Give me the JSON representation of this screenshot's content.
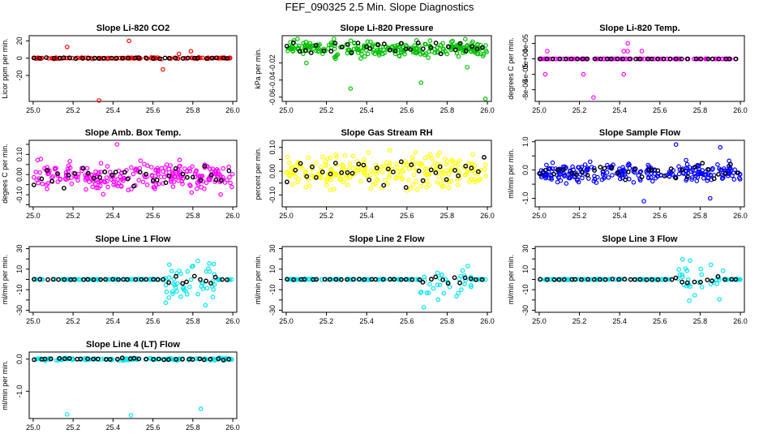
{
  "page_title": "FEF_090325  2.5 Min. Slope Diagnostics",
  "colors": {
    "overlay": "#000000",
    "red": "#ff0000",
    "green": "#00c000",
    "magenta": "#ff00ff",
    "yellow": "#ffff00",
    "blue": "#0000ff",
    "cyan": "#00e5ee"
  },
  "chart_data": [
    {
      "type": "scatter",
      "title": "Slope Li-820 CO2",
      "ylabel": "Licor ppm per min.",
      "xlim": [
        24.98,
        26.02
      ],
      "ylim": [
        -50,
        26
      ],
      "xticks": [
        "25.0",
        "25.2",
        "25.4",
        "25.6",
        "25.8",
        "26.0"
      ],
      "yticks": [
        -20,
        0,
        20
      ],
      "color_name": "red",
      "pattern": "flat",
      "noise": 1.2,
      "outliers": [
        [
          25.17,
          13
        ],
        [
          25.48,
          20
        ],
        [
          25.33,
          -49
        ],
        [
          25.79,
          8
        ],
        [
          25.65,
          -13
        ],
        [
          25.73,
          5
        ]
      ]
    },
    {
      "type": "scatter",
      "title": "Slope Li-820 Pressure",
      "ylabel": "kPa per min.",
      "xlim": [
        24.98,
        26.02
      ],
      "ylim": [
        -0.065,
        0.012
      ],
      "xticks": [
        "25.0",
        "25.2",
        "25.4",
        "25.6",
        "25.8",
        "26.0"
      ],
      "yticks": [
        -0.06,
        -0.04,
        -0.02
      ],
      "color_name": "green",
      "pattern": "band",
      "center": -0.003,
      "noise": 0.009,
      "outliers": [
        [
          25.32,
          -0.05
        ],
        [
          25.67,
          -0.043
        ],
        [
          25.99,
          -0.062
        ],
        [
          25.89,
          0.008
        ],
        [
          25.9,
          -0.025
        ],
        [
          25.1,
          -0.02
        ]
      ]
    },
    {
      "type": "scatter",
      "title": "Slope Li-820 Temp.",
      "ylabel": "degrees C per min.",
      "xlim": [
        24.98,
        26.02
      ],
      "ylim": [
        -0.00011,
        6e-05
      ],
      "xticks": [
        "25.0",
        "25.2",
        "25.4",
        "25.6",
        "25.8",
        "26.0"
      ],
      "yticks": [
        -8e-05,
        -4e-05,
        0,
        4e-05
      ],
      "ytick_labels": [
        "-8e-05",
        "-4e-05",
        "0e+00",
        "4e-05"
      ],
      "color_name": "magenta",
      "pattern": "flat",
      "noise": 0,
      "outliers": [
        [
          25.04,
          2e-05
        ],
        [
          25.44,
          4e-05
        ],
        [
          25.42,
          2e-05
        ],
        [
          25.44,
          2e-05
        ],
        [
          25.03,
          -4e-05
        ],
        [
          25.22,
          -4e-05
        ],
        [
          25.42,
          -4e-05
        ],
        [
          25.27,
          -0.0001
        ],
        [
          25.51,
          2e-05
        ]
      ]
    },
    {
      "type": "scatter",
      "title": "Slope Amb. Box Temp.",
      "ylabel": "degees C per min.",
      "xlim": [
        24.98,
        26.02
      ],
      "ylim": [
        -0.16,
        0.17
      ],
      "xticks": [
        "25.0",
        "25.2",
        "25.4",
        "25.6",
        "25.8",
        "26.0"
      ],
      "yticks": [
        -0.15,
        -0.1,
        -0.05,
        0,
        0.05,
        0.1,
        0.15
      ],
      "ytick_labels": [
        "",
        "-0.10",
        "",
        "0.00",
        "",
        "0.10",
        ""
      ],
      "color_name": "magenta",
      "pattern": "band",
      "center": -0.01,
      "noise": 0.075,
      "outliers": [
        [
          25.42,
          0.15
        ]
      ]
    },
    {
      "type": "scatter",
      "title": "Slope Gas Stream RH",
      "ylabel": "percent per min.",
      "xlim": [
        24.98,
        26.02
      ],
      "ylim": [
        -0.15,
        0.13
      ],
      "xticks": [
        "25.0",
        "25.2",
        "25.4",
        "25.6",
        "25.8",
        "26.0"
      ],
      "yticks": [
        -0.1,
        -0.05,
        0,
        0.05,
        0.1
      ],
      "ytick_labels": [
        "-0.10",
        "",
        "0.00",
        "",
        "0.10"
      ],
      "color_name": "yellow",
      "pattern": "band",
      "center": 0,
      "noise": 0.07,
      "outliers": []
    },
    {
      "type": "scatter",
      "title": "Slope Sample Flow",
      "ylabel": "ml/min per min.",
      "xlim": [
        24.98,
        26.02
      ],
      "ylim": [
        -1.3,
        1.05
      ],
      "xticks": [
        "25.0",
        "25.2",
        "25.4",
        "25.6",
        "25.8",
        "26.0"
      ],
      "yticks": [
        -1,
        -0.5,
        0,
        0.5,
        1
      ],
      "ytick_labels": [
        "-1.0",
        "",
        "0.0",
        "",
        "1.0"
      ],
      "color_name": "blue",
      "pattern": "band",
      "center": -0.1,
      "noise": 0.35,
      "outliers": [
        [
          25.52,
          -1.1
        ],
        [
          25.68,
          0.9
        ],
        [
          25.9,
          0.8
        ],
        [
          25.85,
          -1.0
        ]
      ]
    },
    {
      "type": "scatter",
      "title": "Slope Line 1 Flow",
      "ylabel": "ml/min per min.",
      "xlim": [
        24.98,
        26.02
      ],
      "ylim": [
        -32,
        32
      ],
      "xticks": [
        "25.0",
        "25.2",
        "25.4",
        "25.6",
        "25.8",
        "26.0"
      ],
      "yticks": [
        -30,
        -20,
        -10,
        0,
        10,
        20,
        30
      ],
      "ytick_labels": [
        "-30",
        "",
        "-10",
        "",
        "10",
        "",
        "30"
      ],
      "color_name": "cyan",
      "pattern": "burst",
      "noise": 0.6,
      "burst_start": 25.66,
      "burst_end": 25.92,
      "burst_amp": 28,
      "outliers": []
    },
    {
      "type": "scatter",
      "title": "Slope Line 2 Flow",
      "ylabel": "ml/min per min.",
      "xlim": [
        24.98,
        26.02
      ],
      "ylim": [
        -32,
        32
      ],
      "xticks": [
        "25.0",
        "25.2",
        "25.4",
        "25.6",
        "25.8",
        "26.0"
      ],
      "yticks": [
        -30,
        -20,
        -10,
        0,
        10,
        20,
        30
      ],
      "ytick_labels": [
        "-30",
        "",
        "-10",
        "",
        "10",
        "",
        "30"
      ],
      "color_name": "cyan",
      "pattern": "burst",
      "noise": 0.6,
      "burst_start": 25.66,
      "burst_end": 25.92,
      "burst_amp": 28,
      "outliers": []
    },
    {
      "type": "scatter",
      "title": "Slope Line 3 Flow",
      "ylabel": "ml/min per min.",
      "xlim": [
        24.98,
        26.02
      ],
      "ylim": [
        -32,
        32
      ],
      "xticks": [
        "25.0",
        "25.2",
        "25.4",
        "25.6",
        "25.8",
        "26.0"
      ],
      "yticks": [
        -30,
        -20,
        -10,
        0,
        10,
        20,
        30
      ],
      "ytick_labels": [
        "-30",
        "",
        "-10",
        "",
        "10",
        "",
        "30"
      ],
      "color_name": "cyan",
      "pattern": "burst",
      "noise": 0.6,
      "burst_start": 25.66,
      "burst_end": 25.92,
      "burst_amp": 28,
      "outliers": []
    },
    {
      "type": "scatter",
      "title": "Slope Line 4 (LT) Flow",
      "ylabel": "ml/min per min.",
      "xlim": [
        24.98,
        26.02
      ],
      "ylim": [
        -1.85,
        0.22
      ],
      "xticks": [
        "25.0",
        "25.2",
        "25.4",
        "25.6",
        "25.8",
        "26.0"
      ],
      "yticks": [
        -1,
        0
      ],
      "ytick_labels": [
        "-1.0",
        "0.0"
      ],
      "color_name": "cyan",
      "pattern": "flat",
      "noise": 0.06,
      "outliers": [
        [
          25.17,
          -1.72
        ],
        [
          25.49,
          -1.75
        ],
        [
          25.84,
          -1.55
        ]
      ]
    }
  ]
}
